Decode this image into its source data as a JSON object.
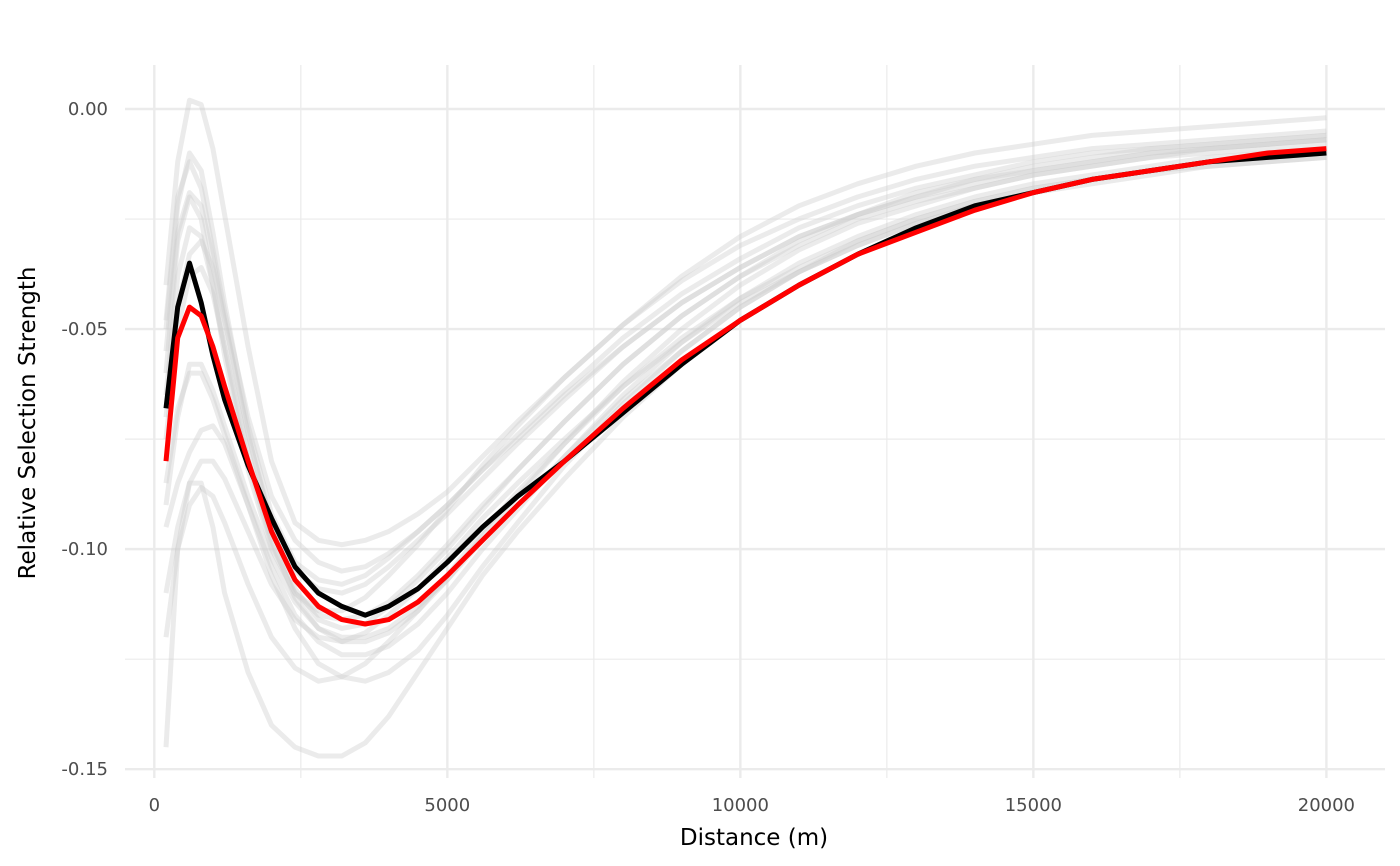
{
  "chart_data": {
    "type": "line",
    "title": "",
    "xlabel": "Distance (m)",
    "ylabel": "Relative Selection Strength",
    "xlim": [
      -500,
      21000
    ],
    "ylim": [
      -0.152,
      0.01
    ],
    "x_ticks": [
      0,
      5000,
      10000,
      15000,
      20000
    ],
    "x_tick_labels": [
      "0",
      "5000",
      "10000",
      "15000",
      "20000"
    ],
    "y_ticks": [
      0.0,
      -0.05,
      -0.1,
      -0.15
    ],
    "y_tick_labels": [
      "0.00",
      "-0.05",
      "-0.10",
      "-0.15"
    ],
    "grid": true,
    "legend": "none",
    "colors": {
      "replicates": "#cccccc",
      "mean": "#000000",
      "fitted": "#ff0000",
      "grid": "#ebebeb"
    },
    "x": [
      200,
      400,
      600,
      800,
      1000,
      1200,
      1600,
      2000,
      2400,
      2800,
      3200,
      3600,
      4000,
      4500,
      5000,
      5600,
      6200,
      7000,
      8000,
      9000,
      10000,
      11000,
      12000,
      13000,
      14000,
      15000,
      16000,
      17000,
      18000,
      19000,
      20000
    ],
    "series": [
      {
        "role": "replicate",
        "values": [
          -0.04,
          -0.012,
          0.002,
          0.001,
          -0.009,
          -0.024,
          -0.054,
          -0.08,
          -0.094,
          -0.098,
          -0.099,
          -0.098,
          -0.096,
          -0.092,
          -0.087,
          -0.079,
          -0.071,
          -0.061,
          -0.049,
          -0.038,
          -0.029,
          -0.022,
          -0.017,
          -0.013,
          -0.01,
          -0.008,
          -0.006,
          -0.005,
          -0.004,
          -0.003,
          -0.002
        ]
      },
      {
        "role": "replicate",
        "values": [
          -0.05,
          -0.022,
          -0.01,
          -0.014,
          -0.028,
          -0.044,
          -0.072,
          -0.092,
          -0.103,
          -0.107,
          -0.108,
          -0.106,
          -0.102,
          -0.096,
          -0.09,
          -0.082,
          -0.074,
          -0.064,
          -0.052,
          -0.042,
          -0.034,
          -0.027,
          -0.022,
          -0.018,
          -0.015,
          -0.012,
          -0.01,
          -0.009,
          -0.008,
          -0.007,
          -0.006
        ]
      },
      {
        "role": "replicate",
        "values": [
          -0.055,
          -0.028,
          -0.019,
          -0.022,
          -0.034,
          -0.048,
          -0.074,
          -0.094,
          -0.105,
          -0.109,
          -0.11,
          -0.108,
          -0.104,
          -0.098,
          -0.092,
          -0.084,
          -0.076,
          -0.066,
          -0.054,
          -0.044,
          -0.036,
          -0.029,
          -0.024,
          -0.02,
          -0.017,
          -0.014,
          -0.012,
          -0.01,
          -0.009,
          -0.008,
          -0.007
        ]
      },
      {
        "role": "replicate",
        "values": [
          -0.065,
          -0.038,
          -0.027,
          -0.029,
          -0.04,
          -0.054,
          -0.08,
          -0.099,
          -0.11,
          -0.115,
          -0.116,
          -0.115,
          -0.112,
          -0.106,
          -0.099,
          -0.09,
          -0.082,
          -0.071,
          -0.058,
          -0.047,
          -0.038,
          -0.031,
          -0.025,
          -0.021,
          -0.018,
          -0.015,
          -0.013,
          -0.011,
          -0.009,
          -0.008,
          -0.007
        ]
      },
      {
        "role": "replicate",
        "values": [
          -0.075,
          -0.05,
          -0.038,
          -0.036,
          -0.042,
          -0.054,
          -0.078,
          -0.098,
          -0.111,
          -0.118,
          -0.121,
          -0.121,
          -0.119,
          -0.114,
          -0.107,
          -0.097,
          -0.088,
          -0.076,
          -0.062,
          -0.05,
          -0.04,
          -0.032,
          -0.026,
          -0.022,
          -0.018,
          -0.015,
          -0.013,
          -0.011,
          -0.01,
          -0.009,
          -0.008
        ]
      },
      {
        "role": "replicate",
        "values": [
          -0.085,
          -0.068,
          -0.06,
          -0.06,
          -0.066,
          -0.074,
          -0.09,
          -0.104,
          -0.115,
          -0.121,
          -0.124,
          -0.124,
          -0.122,
          -0.117,
          -0.11,
          -0.1,
          -0.091,
          -0.079,
          -0.065,
          -0.053,
          -0.043,
          -0.035,
          -0.029,
          -0.024,
          -0.02,
          -0.017,
          -0.015,
          -0.013,
          -0.011,
          -0.01,
          -0.009
        ]
      },
      {
        "role": "replicate",
        "values": [
          -0.095,
          -0.085,
          -0.078,
          -0.073,
          -0.072,
          -0.076,
          -0.09,
          -0.106,
          -0.118,
          -0.126,
          -0.129,
          -0.13,
          -0.128,
          -0.123,
          -0.115,
          -0.104,
          -0.094,
          -0.081,
          -0.067,
          -0.055,
          -0.045,
          -0.037,
          -0.03,
          -0.025,
          -0.021,
          -0.018,
          -0.016,
          -0.014,
          -0.012,
          -0.011,
          -0.01
        ]
      },
      {
        "role": "replicate",
        "values": [
          -0.12,
          -0.1,
          -0.09,
          -0.086,
          -0.088,
          -0.094,
          -0.108,
          -0.12,
          -0.127,
          -0.13,
          -0.129,
          -0.126,
          -0.121,
          -0.114,
          -0.106,
          -0.096,
          -0.087,
          -0.076,
          -0.063,
          -0.052,
          -0.043,
          -0.036,
          -0.03,
          -0.025,
          -0.021,
          -0.018,
          -0.016,
          -0.014,
          -0.012,
          -0.011,
          -0.01
        ]
      },
      {
        "role": "replicate",
        "values": [
          -0.145,
          -0.1,
          -0.085,
          -0.085,
          -0.095,
          -0.11,
          -0.128,
          -0.14,
          -0.145,
          -0.147,
          -0.147,
          -0.144,
          -0.138,
          -0.128,
          -0.118,
          -0.106,
          -0.096,
          -0.084,
          -0.07,
          -0.058,
          -0.048,
          -0.04,
          -0.033,
          -0.027,
          -0.023,
          -0.019,
          -0.016,
          -0.014,
          -0.012,
          -0.011,
          -0.01
        ]
      },
      {
        "role": "replicate",
        "values": [
          -0.06,
          -0.03,
          -0.02,
          -0.025,
          -0.04,
          -0.056,
          -0.082,
          -0.1,
          -0.11,
          -0.114,
          -0.114,
          -0.111,
          -0.106,
          -0.099,
          -0.091,
          -0.081,
          -0.072,
          -0.061,
          -0.049,
          -0.039,
          -0.031,
          -0.025,
          -0.02,
          -0.016,
          -0.013,
          -0.011,
          -0.009,
          -0.008,
          -0.007,
          -0.006,
          -0.005
        ]
      },
      {
        "role": "replicate",
        "values": [
          -0.07,
          -0.045,
          -0.033,
          -0.03,
          -0.036,
          -0.048,
          -0.074,
          -0.095,
          -0.109,
          -0.116,
          -0.118,
          -0.117,
          -0.113,
          -0.107,
          -0.1,
          -0.091,
          -0.082,
          -0.071,
          -0.058,
          -0.047,
          -0.038,
          -0.03,
          -0.024,
          -0.019,
          -0.016,
          -0.013,
          -0.011,
          -0.009,
          -0.008,
          -0.007,
          -0.006
        ]
      },
      {
        "role": "replicate",
        "values": [
          -0.09,
          -0.07,
          -0.058,
          -0.058,
          -0.064,
          -0.072,
          -0.088,
          -0.102,
          -0.112,
          -0.118,
          -0.12,
          -0.12,
          -0.118,
          -0.113,
          -0.107,
          -0.098,
          -0.09,
          -0.079,
          -0.066,
          -0.055,
          -0.045,
          -0.037,
          -0.031,
          -0.026,
          -0.022,
          -0.019,
          -0.016,
          -0.014,
          -0.013,
          -0.012,
          -0.011
        ]
      },
      {
        "role": "replicate",
        "values": [
          -0.11,
          -0.095,
          -0.085,
          -0.08,
          -0.08,
          -0.084,
          -0.096,
          -0.108,
          -0.116,
          -0.12,
          -0.121,
          -0.119,
          -0.115,
          -0.109,
          -0.102,
          -0.093,
          -0.085,
          -0.075,
          -0.063,
          -0.053,
          -0.044,
          -0.037,
          -0.031,
          -0.026,
          -0.022,
          -0.019,
          -0.017,
          -0.015,
          -0.013,
          -0.012,
          -0.011
        ]
      },
      {
        "role": "replicate",
        "values": [
          -0.048,
          -0.02,
          -0.012,
          -0.018,
          -0.032,
          -0.046,
          -0.07,
          -0.088,
          -0.098,
          -0.103,
          -0.105,
          -0.104,
          -0.101,
          -0.096,
          -0.09,
          -0.082,
          -0.075,
          -0.065,
          -0.054,
          -0.044,
          -0.036,
          -0.029,
          -0.024,
          -0.02,
          -0.016,
          -0.014,
          -0.012,
          -0.01,
          -0.009,
          -0.008,
          -0.007
        ]
      },
      {
        "role": "mean",
        "values": [
          -0.068,
          -0.045,
          -0.035,
          -0.044,
          -0.056,
          -0.066,
          -0.081,
          -0.093,
          -0.104,
          -0.11,
          -0.113,
          -0.115,
          -0.113,
          -0.109,
          -0.103,
          -0.095,
          -0.088,
          -0.08,
          -0.069,
          -0.058,
          -0.048,
          -0.04,
          -0.033,
          -0.027,
          -0.022,
          -0.019,
          -0.016,
          -0.014,
          -0.012,
          -0.011,
          -0.01
        ]
      },
      {
        "role": "fitted",
        "values": [
          -0.08,
          -0.052,
          -0.045,
          -0.047,
          -0.054,
          -0.063,
          -0.08,
          -0.096,
          -0.107,
          -0.113,
          -0.116,
          -0.117,
          -0.116,
          -0.112,
          -0.106,
          -0.098,
          -0.09,
          -0.08,
          -0.068,
          -0.057,
          -0.048,
          -0.04,
          -0.033,
          -0.028,
          -0.023,
          -0.019,
          -0.016,
          -0.014,
          -0.012,
          -0.01,
          -0.009
        ]
      }
    ]
  }
}
